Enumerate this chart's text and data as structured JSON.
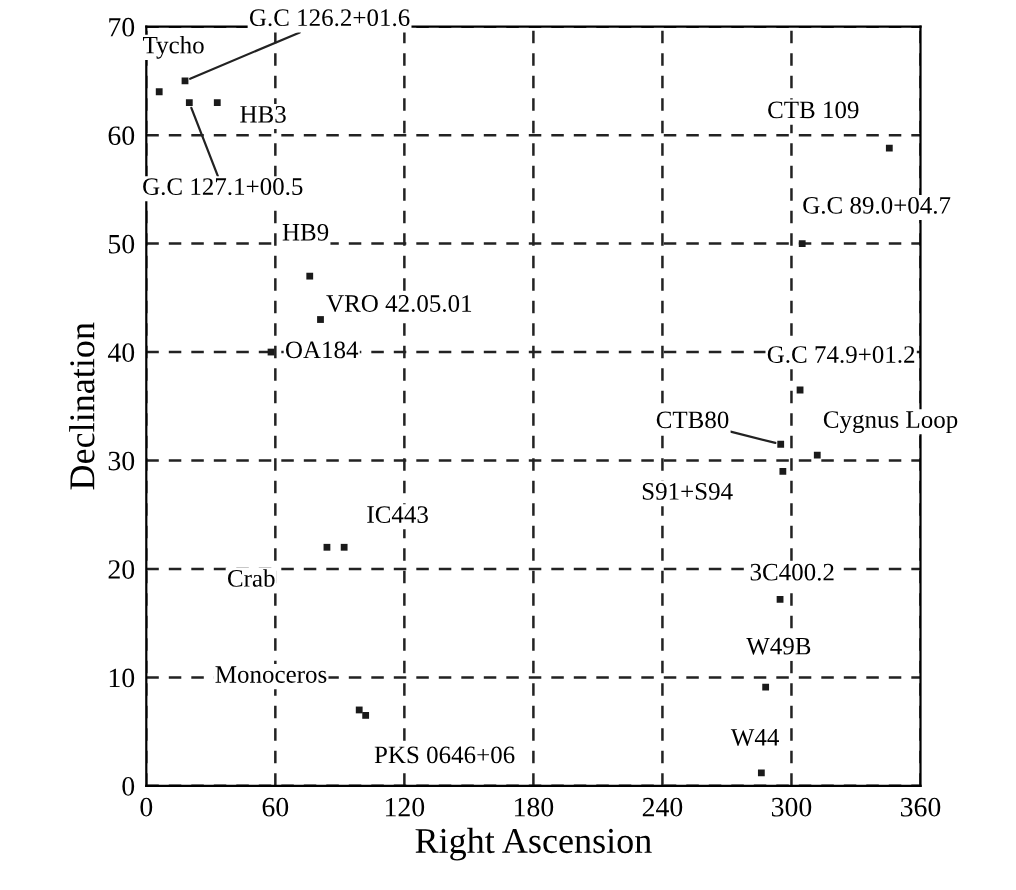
{
  "chart_data": {
    "type": "scatter",
    "xlabel": "Right Ascension",
    "ylabel": "Declination",
    "x": [
      6,
      18,
      33,
      20,
      76,
      81,
      58,
      84,
      92,
      99,
      102,
      345.5,
      305,
      304,
      295,
      312,
      296,
      294.7,
      288,
      286
    ],
    "values": [
      64,
      65,
      63,
      63,
      47,
      43,
      40,
      22,
      22,
      7,
      6.5,
      58.8,
      50,
      36.5,
      31.5,
      30.5,
      29,
      17.2,
      9.1,
      1.2
    ],
    "color": "#1a1a1a",
    "marker": "square",
    "xlim": [
      0,
      360
    ],
    "xticks": [
      0,
      60,
      120,
      180,
      240,
      300,
      360
    ],
    "ylim": [
      0,
      70
    ],
    "yticks": [
      0,
      10,
      20,
      30,
      40,
      50,
      60,
      70
    ],
    "grid": true,
    "annotations": [
      {
        "text": "Tycho",
        "x": 6,
        "y": 64
      },
      {
        "text": "G.C 126.2+01.6",
        "x": 18,
        "y": 65
      },
      {
        "text": "HB3",
        "x": 33,
        "y": 63
      },
      {
        "text": "G.C 127.1+00.5",
        "x": 20,
        "y": 63
      },
      {
        "text": "HB9",
        "x": 76,
        "y": 47
      },
      {
        "text": "VRO 42.05.01",
        "x": 81,
        "y": 43
      },
      {
        "text": "OA184",
        "x": 58,
        "y": 40
      },
      {
        "text": "Crab",
        "x": 84,
        "y": 22
      },
      {
        "text": "IC443",
        "x": 92,
        "y": 22
      },
      {
        "text": "Monoceros",
        "x": 99,
        "y": 7
      },
      {
        "text": "PKS 0646+06",
        "x": 102,
        "y": 6.5
      },
      {
        "text": "CTB 109",
        "x": 345.5,
        "y": 58.8
      },
      {
        "text": "G.C 89.0+04.7",
        "x": 305,
        "y": 50
      },
      {
        "text": "G.C 74.9+01.2",
        "x": 304,
        "y": 36.5
      },
      {
        "text": "CTB80",
        "x": 295,
        "y": 31.5
      },
      {
        "text": "Cygnus Loop",
        "x": 312,
        "y": 30.5
      },
      {
        "text": "S91+S94",
        "x": 296,
        "y": 29
      },
      {
        "text": "3C400.2",
        "x": 294.7,
        "y": 17.2
      },
      {
        "text": "W49B",
        "x": 288,
        "y": 9.1
      },
      {
        "text": "W44",
        "x": 286,
        "y": 1.2
      }
    ]
  }
}
